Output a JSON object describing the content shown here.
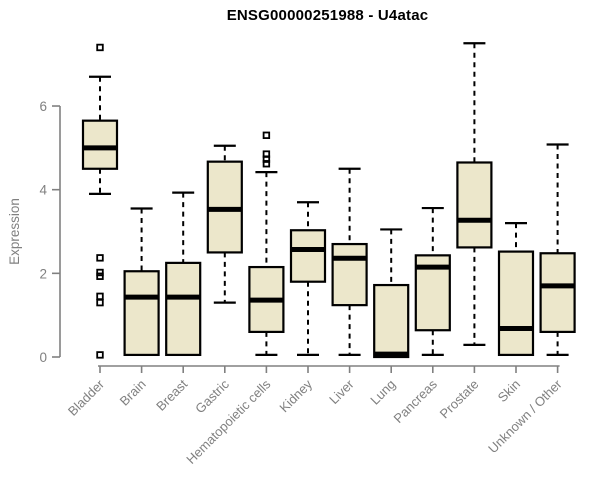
{
  "window": {
    "background": "#ffffff"
  },
  "chart_data": {
    "type": "box",
    "title": "ENSG00000251988 - U4atac",
    "ylabel": "Expression",
    "xlabel": "",
    "ylim": [
      0,
      7.6
    ],
    "yticks": [
      0,
      2,
      4,
      6
    ],
    "grid": false,
    "legend": null,
    "colors": {
      "box_fill": "#ece7cb",
      "box_stroke": "#000000",
      "median": "#000000",
      "whisker": "#000000",
      "outlier_stroke": "#000000",
      "axis": "#808080",
      "tick_label": "#808080",
      "title": "#000000"
    },
    "categories": [
      "Bladder",
      "Brain",
      "Breast",
      "Gastric",
      "Hematopoietic cells",
      "Kidney",
      "Liver",
      "Lung",
      "Pancreas",
      "Prostate",
      "Skin",
      "Unknown / Other"
    ],
    "boxes": [
      {
        "name": "Bladder",
        "whisker_low": 3.9,
        "q1": 4.5,
        "median": 5.0,
        "q3": 5.65,
        "whisker_high": 6.7,
        "outliers": [
          7.4,
          2.37,
          2.02,
          1.93,
          1.45,
          1.3,
          0.05
        ]
      },
      {
        "name": "Brain",
        "whisker_low": 0.05,
        "q1": 0.05,
        "median": 1.43,
        "q3": 2.05,
        "whisker_high": 3.55,
        "outliers": []
      },
      {
        "name": "Breast",
        "whisker_low": 0.05,
        "q1": 0.05,
        "median": 1.43,
        "q3": 2.25,
        "whisker_high": 3.93,
        "outliers": []
      },
      {
        "name": "Gastric",
        "whisker_low": 1.3,
        "q1": 2.5,
        "median": 3.53,
        "q3": 4.67,
        "whisker_high": 5.05,
        "outliers": []
      },
      {
        "name": "Hematopoietic cells",
        "whisker_low": 0.05,
        "q1": 0.6,
        "median": 1.36,
        "q3": 2.15,
        "whisker_high": 4.42,
        "outliers": [
          5.3,
          4.85,
          4.73,
          4.62
        ]
      },
      {
        "name": "Kidney",
        "whisker_low": 0.05,
        "q1": 1.8,
        "median": 2.57,
        "q3": 3.03,
        "whisker_high": 3.7,
        "outliers": []
      },
      {
        "name": "Liver",
        "whisker_low": 0.05,
        "q1": 1.24,
        "median": 2.36,
        "q3": 2.7,
        "whisker_high": 4.5,
        "outliers": []
      },
      {
        "name": "Lung",
        "whisker_low": 0.0,
        "q1": 0.0,
        "median": 0.07,
        "q3": 1.72,
        "whisker_high": 3.05,
        "outliers": []
      },
      {
        "name": "Pancreas",
        "whisker_low": 0.05,
        "q1": 0.64,
        "median": 2.15,
        "q3": 2.43,
        "whisker_high": 3.56,
        "outliers": []
      },
      {
        "name": "Prostate",
        "whisker_low": 0.29,
        "q1": 2.62,
        "median": 3.27,
        "q3": 4.65,
        "whisker_high": 7.5,
        "outliers": []
      },
      {
        "name": "Skin",
        "whisker_low": 0.05,
        "q1": 0.05,
        "median": 0.68,
        "q3": 2.52,
        "whisker_high": 3.2,
        "outliers": []
      },
      {
        "name": "Unknown / Other",
        "whisker_low": 0.05,
        "q1": 0.6,
        "median": 1.7,
        "q3": 2.48,
        "whisker_high": 5.08,
        "outliers": []
      }
    ]
  }
}
